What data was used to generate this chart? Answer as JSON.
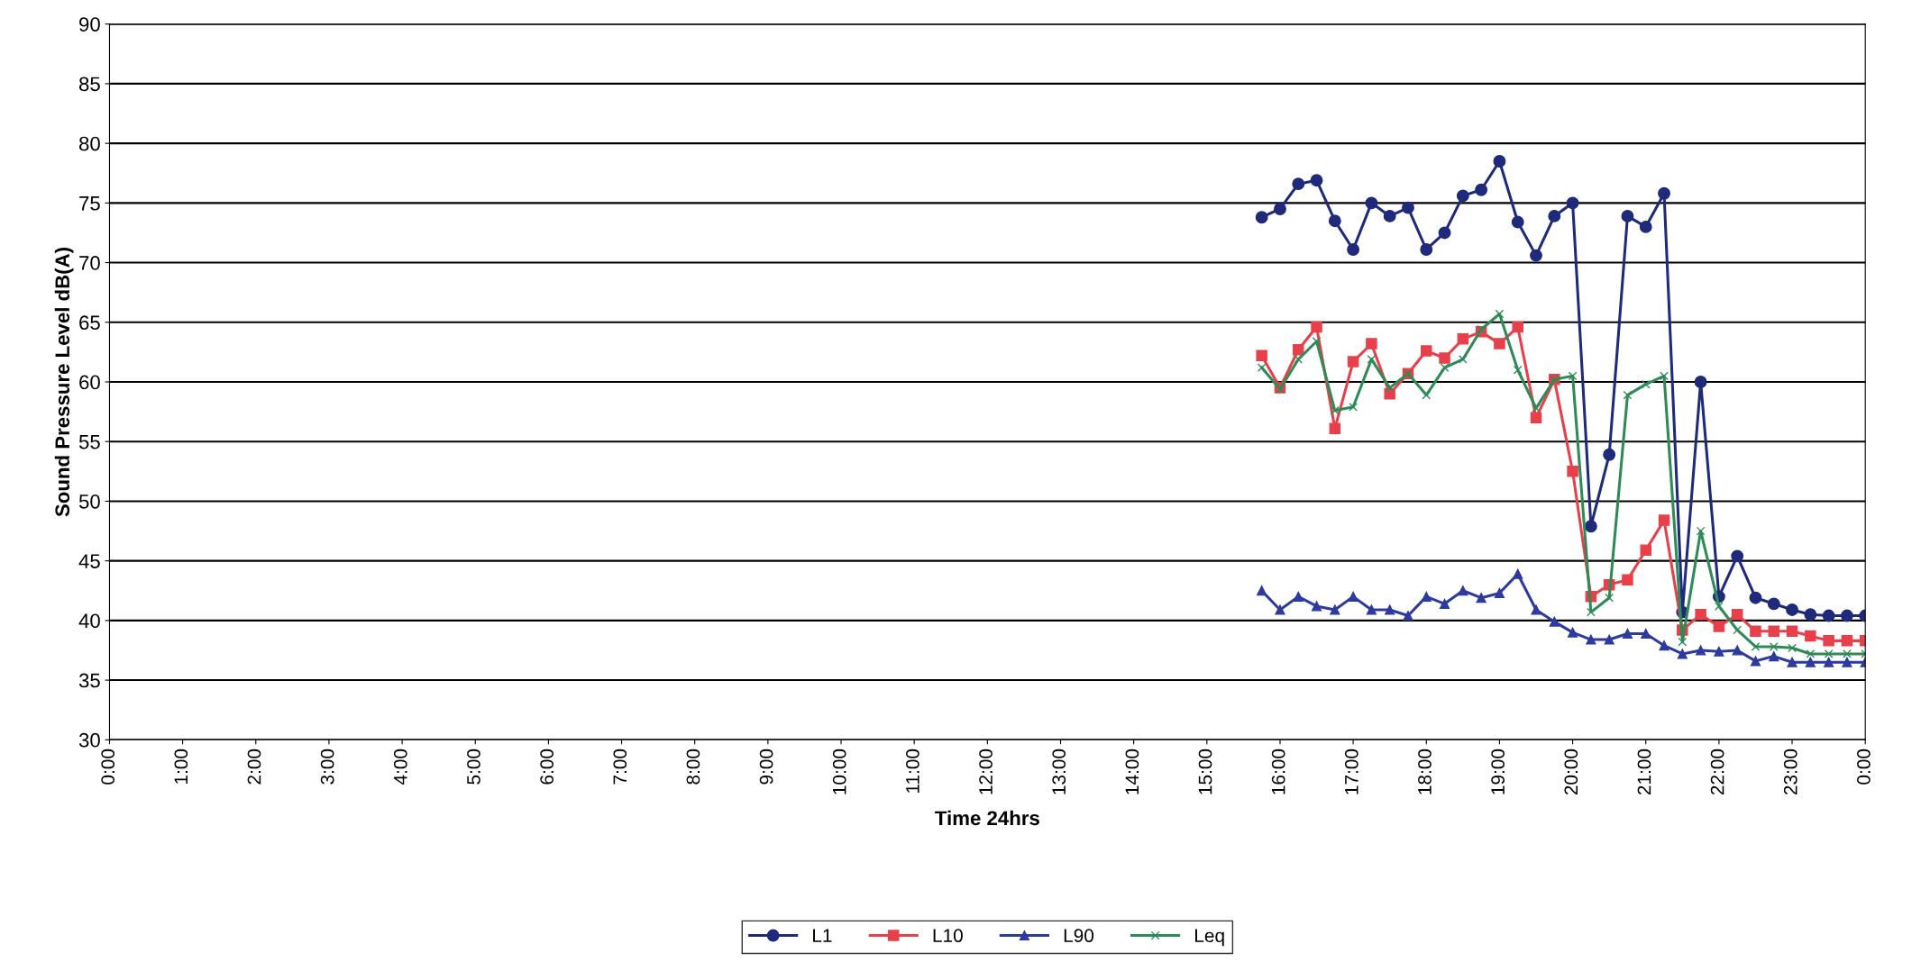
{
  "chart_data": {
    "type": "line",
    "xlabel": "Time 24hrs",
    "ylabel": "Sound Pressure Level dB(A)",
    "x": [
      15.75,
      16,
      16.25,
      16.5,
      16.75,
      17,
      17.25,
      17.5,
      17.75,
      18,
      18.25,
      18.5,
      18.75,
      19,
      19.25,
      19.5,
      19.75,
      20,
      20.25,
      20.5,
      20.75,
      21,
      21.25,
      21.5,
      21.75,
      22,
      22.25,
      22.5,
      22.75,
      23,
      23.25,
      23.5,
      23.75,
      24
    ],
    "series": [
      {
        "name": "L1",
        "color": "#1f2a7a",
        "marker": "circle",
        "values": [
          73.8,
          74.5,
          76.6,
          76.9,
          73.5,
          71.1,
          75.0,
          73.9,
          74.6,
          71.1,
          72.5,
          75.6,
          76.1,
          78.5,
          73.4,
          70.6,
          73.9,
          75.0,
          47.9,
          53.9,
          73.9,
          73.0,
          75.8,
          40.7,
          60.0,
          42.0,
          45.4,
          41.9,
          41.4,
          40.9,
          40.5,
          40.4,
          40.4,
          40.4
        ]
      },
      {
        "name": "L10",
        "color": "#e8404a",
        "marker": "square",
        "values": [
          62.2,
          59.5,
          62.7,
          64.6,
          56.1,
          61.7,
          63.2,
          59.0,
          60.7,
          62.6,
          62.0,
          63.6,
          64.2,
          63.2,
          64.6,
          57.0,
          60.2,
          52.5,
          42.0,
          43.0,
          43.4,
          45.9,
          48.4,
          39.2,
          40.5,
          39.5,
          40.5,
          39.1,
          39.1,
          39.1,
          38.7,
          38.3,
          38.3,
          38.3
        ]
      },
      {
        "name": "L90",
        "color": "#2d3a9e",
        "marker": "triangle",
        "values": [
          42.5,
          40.9,
          42.0,
          41.2,
          40.9,
          42.0,
          40.9,
          40.9,
          40.4,
          42.0,
          41.4,
          42.5,
          41.9,
          42.3,
          43.9,
          40.9,
          39.9,
          39.0,
          38.4,
          38.4,
          38.9,
          38.9,
          37.9,
          37.2,
          37.5,
          37.4,
          37.5,
          36.6,
          37.0,
          36.5,
          36.5,
          36.5,
          36.5,
          36.5
        ]
      },
      {
        "name": "Leq",
        "color": "#2e8b57",
        "marker": "cross",
        "values": [
          61.2,
          59.4,
          61.9,
          63.4,
          57.6,
          57.9,
          61.9,
          59.5,
          60.7,
          58.9,
          61.2,
          61.9,
          64.4,
          65.7,
          61.0,
          57.8,
          60.2,
          60.5,
          40.7,
          41.9,
          58.9,
          59.8,
          60.5,
          38.2,
          47.5,
          41.2,
          39.2,
          37.8,
          37.8,
          37.7,
          37.2,
          37.2,
          37.2,
          37.2
        ]
      }
    ],
    "xlim": [
      0,
      24
    ],
    "xticks": [
      {
        "value": 0,
        "label": "0:00"
      },
      {
        "value": 1,
        "label": "1:00"
      },
      {
        "value": 2,
        "label": "2:00"
      },
      {
        "value": 3,
        "label": "3:00"
      },
      {
        "value": 4,
        "label": "4:00"
      },
      {
        "value": 5,
        "label": "5:00"
      },
      {
        "value": 6,
        "label": "6:00"
      },
      {
        "value": 7,
        "label": "7:00"
      },
      {
        "value": 8,
        "label": "8:00"
      },
      {
        "value": 9,
        "label": "9:00"
      },
      {
        "value": 10,
        "label": "10:00"
      },
      {
        "value": 11,
        "label": "11:00"
      },
      {
        "value": 12,
        "label": "12:00"
      },
      {
        "value": 13,
        "label": "13:00"
      },
      {
        "value": 14,
        "label": "14:00"
      },
      {
        "value": 15,
        "label": "15:00"
      },
      {
        "value": 16,
        "label": "16:00"
      },
      {
        "value": 17,
        "label": "17:00"
      },
      {
        "value": 18,
        "label": "18:00"
      },
      {
        "value": 19,
        "label": "19:00"
      },
      {
        "value": 20,
        "label": "20:00"
      },
      {
        "value": 21,
        "label": "21:00"
      },
      {
        "value": 22,
        "label": "22:00"
      },
      {
        "value": 23,
        "label": "23:00"
      },
      {
        "value": 24,
        "label": "0:00"
      }
    ],
    "ylim": [
      30,
      90
    ],
    "yticks": [
      30,
      35,
      40,
      45,
      50,
      55,
      60,
      65,
      70,
      75,
      80,
      85,
      90
    ],
    "grid": "y",
    "legend": "bottom",
    "line_style": "solid"
  }
}
